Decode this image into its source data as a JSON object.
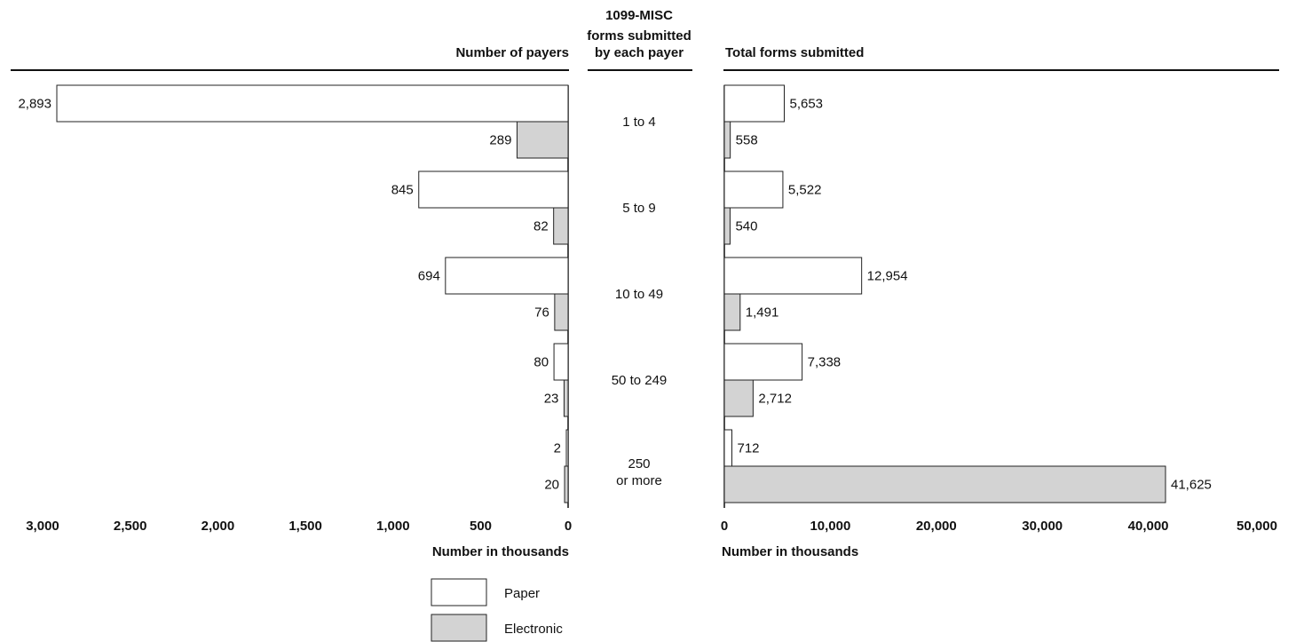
{
  "colors": {
    "paper": "#ffffff",
    "electronic": "#d3d3d3",
    "stroke": "#222222"
  },
  "headers": {
    "left": "Number of payers",
    "center": [
      "1099-MISC",
      "forms submitted",
      "by each payer"
    ],
    "right": "Total forms submitted"
  },
  "axis_titles": {
    "left": "Number in thousands",
    "right": "Number in thousands"
  },
  "legend": {
    "paper": "Paper",
    "electronic": "Electronic"
  },
  "chart_data": [
    {
      "type": "bar",
      "orientation": "horizontal-reversed",
      "title": "Number of payers",
      "xlabel": "Number in thousands",
      "categories": [
        "1 to 4",
        "5 to 9",
        "10 to 49",
        "50 to 249",
        "250 or more"
      ],
      "series": [
        {
          "name": "Paper",
          "values": [
            2893,
            845,
            694,
            80,
            2
          ],
          "labels": [
            "2,893",
            "845",
            "694",
            "80",
            "2"
          ]
        },
        {
          "name": "Electronic",
          "values": [
            289,
            82,
            76,
            23,
            20
          ],
          "labels": [
            "289",
            "82",
            "76",
            "23",
            "20"
          ]
        }
      ],
      "xlim": [
        0,
        3000
      ],
      "ticks": [
        3000,
        2500,
        2000,
        1500,
        1000,
        500,
        0
      ],
      "tick_labels": [
        "3,000",
        "2,500",
        "2,000",
        "1,500",
        "1,000",
        "500",
        "0"
      ]
    },
    {
      "type": "bar",
      "orientation": "horizontal",
      "title": "Total forms submitted",
      "xlabel": "Number in thousands",
      "categories": [
        "1 to 4",
        "5 to 9",
        "10 to 49",
        "50 to 249",
        "250 or more"
      ],
      "series": [
        {
          "name": "Paper",
          "values": [
            5653,
            5522,
            12954,
            7338,
            712
          ],
          "labels": [
            "5,653",
            "5,522",
            "12,954",
            "7,338",
            "712"
          ]
        },
        {
          "name": "Electronic",
          "values": [
            558,
            540,
            1491,
            2712,
            41625
          ],
          "labels": [
            "558",
            "540",
            "1,491",
            "2,712",
            "41,625"
          ]
        }
      ],
      "xlim": [
        0,
        50000
      ],
      "ticks": [
        0,
        10000,
        20000,
        30000,
        40000,
        50000
      ],
      "tick_labels": [
        "0",
        "10,000",
        "20,000",
        "30,000",
        "40,000",
        "50,000"
      ]
    }
  ]
}
